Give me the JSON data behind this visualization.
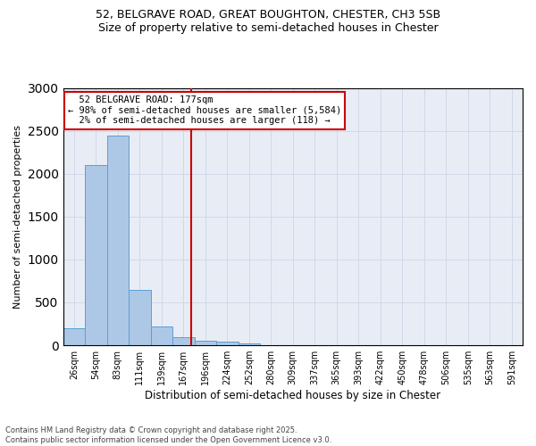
{
  "title_line1": "52, BELGRAVE ROAD, GREAT BOUGHTON, CHESTER, CH3 5SB",
  "title_line2": "Size of property relative to semi-detached houses in Chester",
  "xlabel": "Distribution of semi-detached houses by size in Chester",
  "ylabel": "Number of semi-detached properties",
  "bin_labels": [
    "26sqm",
    "54sqm",
    "83sqm",
    "111sqm",
    "139sqm",
    "167sqm",
    "196sqm",
    "224sqm",
    "252sqm",
    "280sqm",
    "309sqm",
    "337sqm",
    "365sqm",
    "393sqm",
    "422sqm",
    "450sqm",
    "478sqm",
    "506sqm",
    "535sqm",
    "563sqm",
    "591sqm"
  ],
  "bar_values": [
    200,
    2100,
    2440,
    650,
    220,
    90,
    50,
    45,
    25,
    0,
    0,
    0,
    0,
    0,
    0,
    0,
    0,
    0,
    0,
    0,
    0
  ],
  "bar_color": "#adc8e6",
  "bar_edge_color": "#5a9fd4",
  "property_label": "52 BELGRAVE ROAD: 177sqm",
  "pct_smaller": 98,
  "count_smaller": 5584,
  "pct_larger": 2,
  "count_larger": 118,
  "vline_color": "#cc0000",
  "annotation_box_color": "#cc0000",
  "grid_color": "#d0d8e8",
  "background_color": "#e8edf5",
  "ylim": [
    0,
    3000
  ],
  "vline_x": 5.345,
  "footnote_line1": "Contains HM Land Registry data © Crown copyright and database right 2025.",
  "footnote_line2": "Contains public sector information licensed under the Open Government Licence v3.0."
}
